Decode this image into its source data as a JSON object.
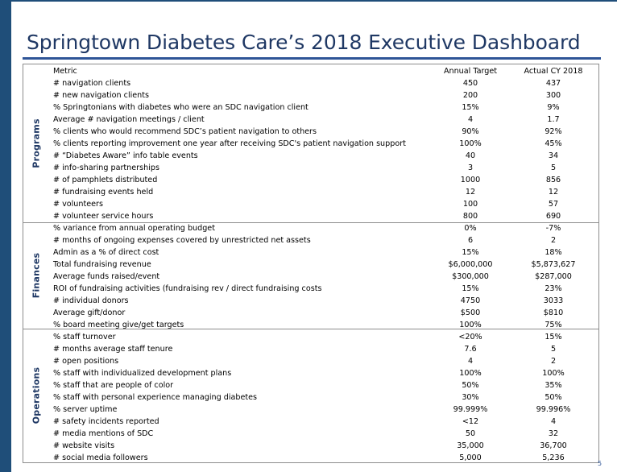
{
  "title": "Springtown Diabetes Care’s 2018 Executive Dashboard",
  "sections": {
    "programs": "Programs",
    "finances": "Finances",
    "operations": "Operations"
  },
  "table": {
    "headers": {
      "metric": "Metric",
      "target": "Annual Target",
      "actual": "Actual CY 2018"
    },
    "rows": [
      {
        "metric": "# navigation clients",
        "target": "450",
        "actual": "437"
      },
      {
        "metric": "# new navigation clients",
        "target": "200",
        "actual": "300"
      },
      {
        "metric": "% Springtonians with diabetes who were an SDC navigation client",
        "target": "15%",
        "actual": "9%"
      },
      {
        "metric": "Average # navigation meetings / client",
        "target": "4",
        "actual": "1.7"
      },
      {
        "metric": "% clients who would recommend SDC’s patient navigation to others",
        "target": "90%",
        "actual": "92%"
      },
      {
        "metric": "% clients reporting improvement one year after receiving SDC's patient navigation support",
        "target": "100%",
        "actual": "45%"
      },
      {
        "metric": "# “Diabetes Aware” info table events",
        "target": "40",
        "actual": "34"
      },
      {
        "metric": "# info-sharing partnerships",
        "target": "3",
        "actual": "5"
      },
      {
        "metric": "# of pamphlets distributed",
        "target": "1000",
        "actual": "856"
      },
      {
        "metric": "# fundraising events held",
        "target": "12",
        "actual": "12"
      },
      {
        "metric": "# volunteers",
        "target": "100",
        "actual": "57"
      },
      {
        "metric": "# volunteer service hours",
        "target": "800",
        "actual": "690"
      },
      {
        "metric": "% variance from annual operating budget",
        "target": "0%",
        "actual": "-7%"
      },
      {
        "metric": "# months of ongoing expenses covered by unrestricted net assets",
        "target": "6",
        "actual": "2"
      },
      {
        "metric": "Admin as a % of direct cost",
        "target": "15%",
        "actual": "18%"
      },
      {
        "metric": "Total fundraising revenue",
        "target": "$6,000,000",
        "actual": "$5,873,627"
      },
      {
        "metric": "Average funds raised/event",
        "target": "$300,000",
        "actual": "$287,000"
      },
      {
        "metric": "ROI of fundraising activities (fundraising rev / direct fundraising costs",
        "target": "15%",
        "actual": "23%"
      },
      {
        "metric": "# individual donors",
        "target": "4750",
        "actual": "3033"
      },
      {
        "metric": "Average gift/donor",
        "target": "$500",
        "actual": "$810"
      },
      {
        "metric": "% board meeting give/get targets",
        "target": "100%",
        "actual": "75%"
      },
      {
        "metric": "% staff turnover",
        "target": "<20%",
        "actual": "15%"
      },
      {
        "metric": "# months average staff tenure",
        "target": "7.6",
        "actual": "5"
      },
      {
        "metric": "# open positions",
        "target": "4",
        "actual": "2"
      },
      {
        "metric": "% staff with individualized development plans",
        "target": "100%",
        "actual": "100%"
      },
      {
        "metric": "% staff that are people of color",
        "target": "50%",
        "actual": "35%"
      },
      {
        "metric": "% staff with personal experience managing diabetes",
        "target": "30%",
        "actual": "50%"
      },
      {
        "metric": "% server uptime",
        "target": "99.999%",
        "actual": "99.996%"
      },
      {
        "metric": "# safety incidents reported",
        "target": "<12",
        "actual": "4"
      },
      {
        "metric": "# media mentions of SDC",
        "target": "50",
        "actual": "32"
      },
      {
        "metric": "# website visits",
        "target": "35,000",
        "actual": "36,700"
      },
      {
        "metric": "# social media followers",
        "target": "5,000",
        "actual": "5,236"
      }
    ]
  },
  "page_number": "5",
  "colors": {
    "accent": "#1f4e79",
    "title": "#1f3864",
    "rule": "#2f5597"
  }
}
